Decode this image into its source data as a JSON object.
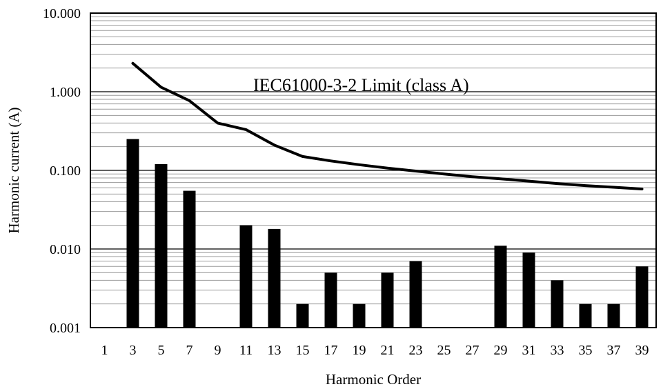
{
  "chart_data": {
    "type": "bar",
    "scale": "log",
    "xlabel": "Harmonic Order",
    "ylabel": "Harmonic current (A)",
    "categories": [
      "1",
      "3",
      "5",
      "7",
      "9",
      "11",
      "13",
      "15",
      "17",
      "19",
      "21",
      "23",
      "25",
      "27",
      "29",
      "31",
      "33",
      "35",
      "37",
      "39"
    ],
    "y_ticks": [
      "0.001",
      "0.010",
      "0.100",
      "1.000",
      "10.000"
    ],
    "ylim": [
      0.001,
      10
    ],
    "grid": true,
    "series": [
      {
        "type": "bar",
        "values": [
          null,
          0.25,
          0.12,
          0.055,
          null,
          0.02,
          0.018,
          0.002,
          0.005,
          0.002,
          0.005,
          0.007,
          null,
          null,
          0.011,
          0.009,
          0.004,
          0.002,
          0.002,
          0.006
        ]
      },
      {
        "type": "line",
        "name": "IEC61000-3-2 Limit (class A)",
        "values": [
          null,
          2.3,
          1.14,
          0.77,
          0.4,
          0.33,
          0.21,
          0.15,
          0.132,
          0.118,
          0.107,
          0.098,
          0.09,
          0.083,
          0.078,
          0.073,
          0.068,
          0.064,
          0.061,
          0.058
        ]
      }
    ],
    "annotation": "IEC61000-3-2 Limit (class A)"
  }
}
